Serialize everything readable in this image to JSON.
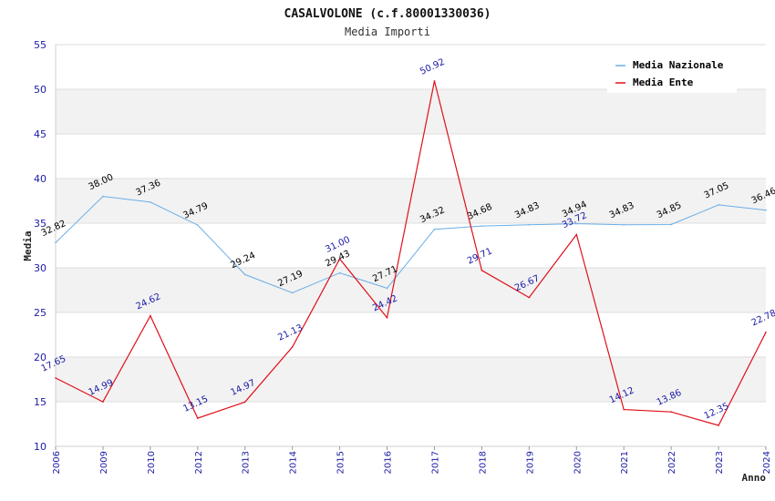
{
  "chart_data": {
    "type": "line",
    "title": "CASALVOLONE (c.f.80001330036)",
    "subtitle": "Media Importi",
    "xlabel": "Anno",
    "ylabel": "Media",
    "ylim": [
      10,
      55
    ],
    "yticks": [
      10,
      15,
      20,
      25,
      30,
      35,
      40,
      45,
      50,
      55
    ],
    "categories": [
      "2006",
      "2009",
      "2010",
      "2012",
      "2013",
      "2014",
      "2015",
      "2016",
      "2017",
      "2018",
      "2019",
      "2020",
      "2021",
      "2022",
      "2023",
      "2024"
    ],
    "series": [
      {
        "name": "Media Nazionale",
        "color": "#6aaee6",
        "values": [
          32.82,
          38.0,
          37.36,
          34.79,
          29.24,
          27.19,
          29.43,
          27.71,
          34.32,
          34.68,
          34.83,
          34.94,
          34.83,
          34.85,
          37.05,
          36.46
        ],
        "labels": [
          "32.82",
          "38.00",
          "37.36",
          "34.79",
          "29.24",
          "27.19",
          "29.43",
          "27.71",
          "34.32",
          "34.68",
          "34.83",
          "34.94",
          "34.83",
          "34.85",
          "37.05",
          "36.46"
        ]
      },
      {
        "name": "Media Ente",
        "color": "#e0101a",
        "values": [
          17.65,
          14.99,
          24.62,
          13.15,
          14.97,
          21.13,
          31.0,
          24.42,
          50.92,
          29.71,
          26.67,
          33.72,
          14.12,
          13.86,
          12.35,
          22.78
        ],
        "labels": [
          "17.65",
          "14.99",
          "24.62",
          "13.15",
          "14.97",
          "21.13",
          "31.00",
          "24.42",
          "50.92",
          "29.71",
          "26.67",
          "33.72",
          "14.12",
          "13.86",
          "12.35",
          "22.78"
        ]
      }
    ],
    "grid": true,
    "legend": "top-right"
  }
}
